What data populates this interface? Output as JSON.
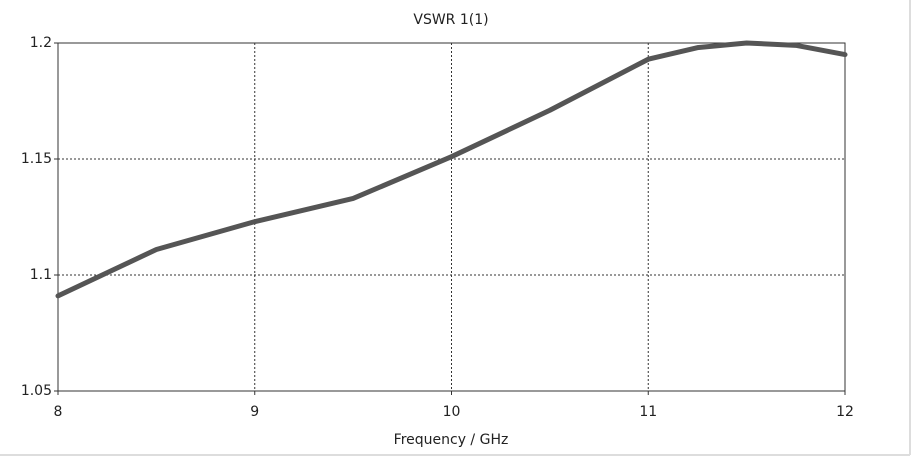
{
  "chart_data": {
    "type": "line",
    "title": "VSWR 1(1)",
    "x_label": "Frequency / GHz",
    "x": [
      8,
      8.5,
      9,
      9.5,
      10,
      10.5,
      11,
      11.25,
      11.5,
      11.75,
      12
    ],
    "series": [
      {
        "name": "VSWR 1(1)",
        "color": "#555555",
        "values": [
          1.091,
          1.111,
          1.123,
          1.133,
          1.151,
          1.171,
          1.193,
          1.198,
          1.2,
          1.199,
          1.195
        ]
      }
    ],
    "xlim": [
      8,
      12
    ],
    "xticks": [
      8,
      9,
      10,
      11,
      12
    ],
    "ylim": [
      1.05,
      1.2
    ],
    "yticks": [
      1.05,
      1.1,
      1.15,
      1.2
    ],
    "grid": true
  }
}
